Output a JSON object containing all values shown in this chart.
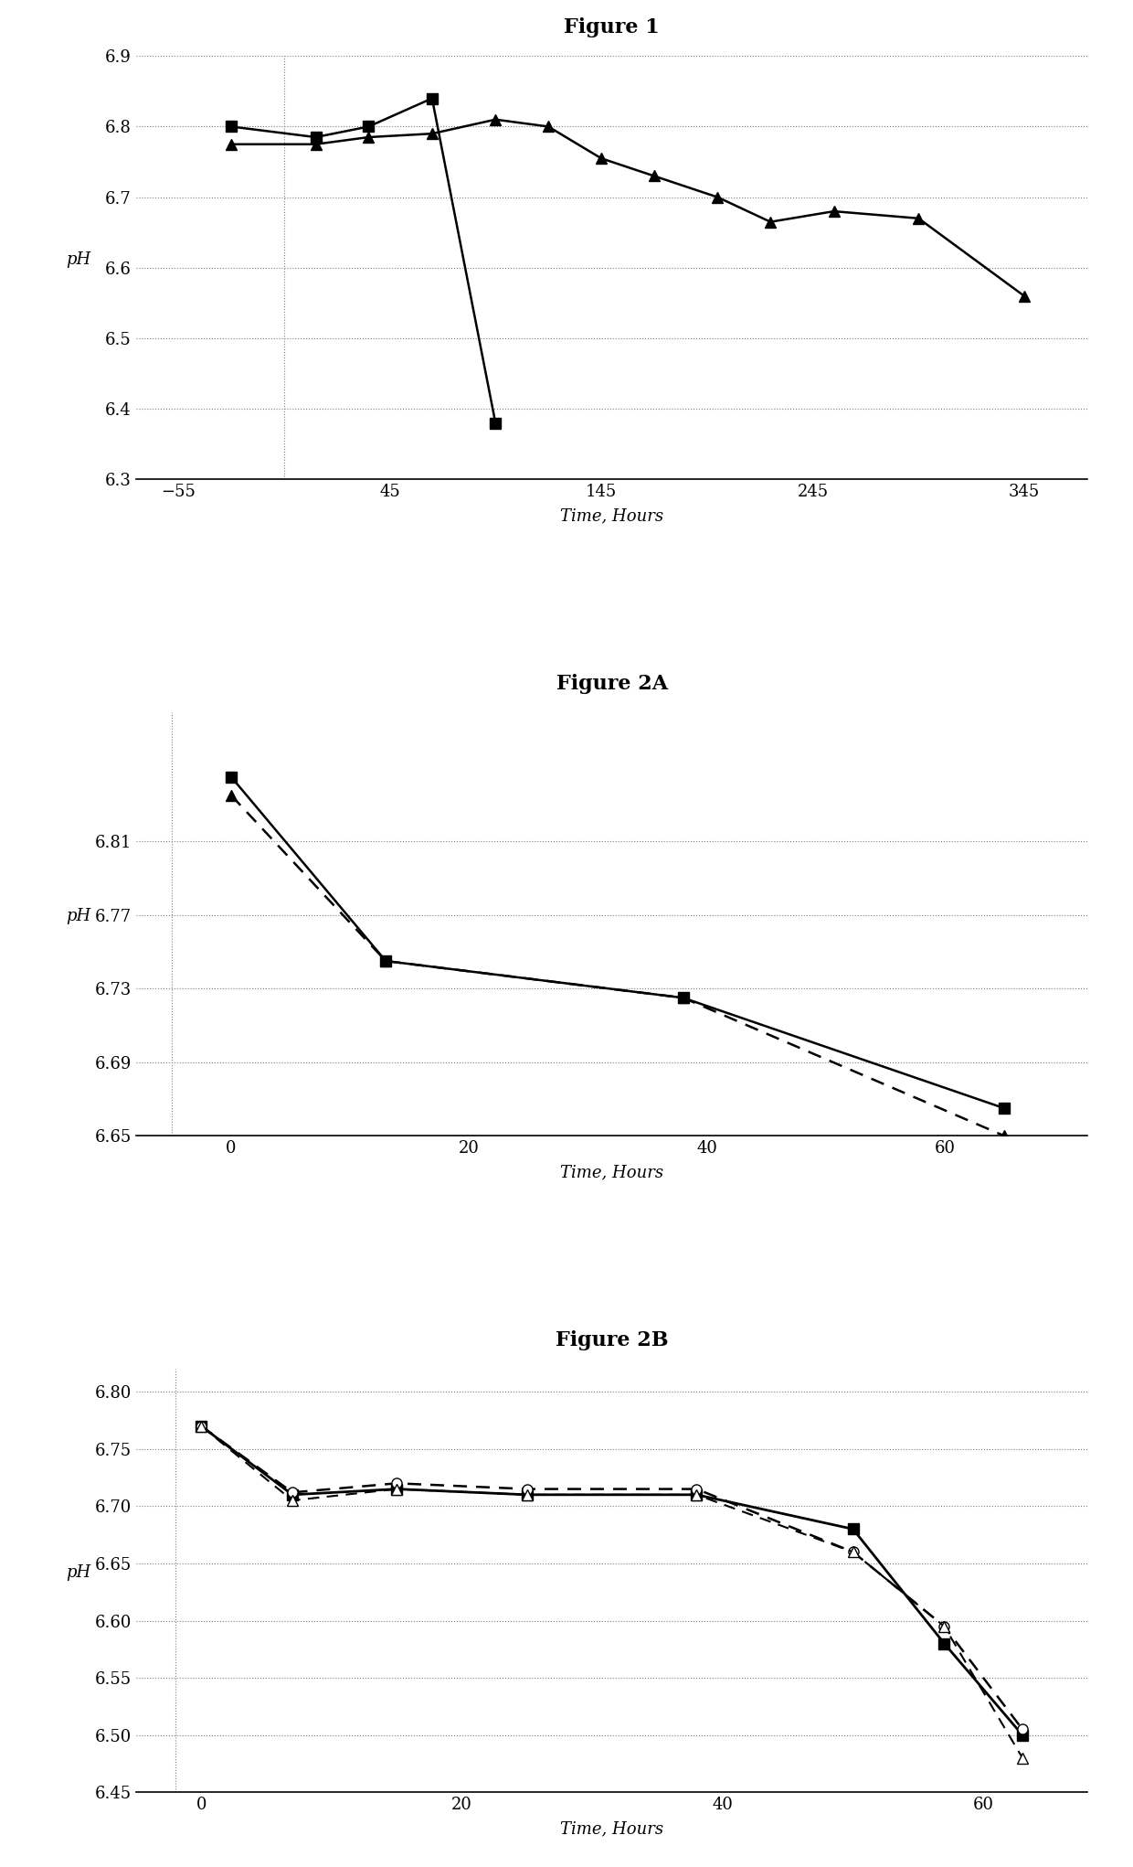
{
  "fig1": {
    "series1": {
      "x": [
        -30,
        10,
        35,
        65,
        95
      ],
      "y": [
        6.8,
        6.785,
        6.8,
        6.84,
        6.38
      ],
      "marker": "s",
      "linestyle": "-",
      "color": "#000000",
      "markersize": 9
    },
    "series2": {
      "x": [
        -30,
        10,
        35,
        65,
        95,
        120,
        145,
        170,
        200,
        225,
        255,
        295,
        345
      ],
      "y": [
        6.775,
        6.775,
        6.785,
        6.79,
        6.81,
        6.8,
        6.755,
        6.73,
        6.7,
        6.665,
        6.68,
        6.67,
        6.56
      ],
      "marker": "^",
      "linestyle": "-",
      "color": "#000000",
      "markersize": 9
    },
    "xlabel": "Time, Hours",
    "ylabel": "pH",
    "title": "Figure 1",
    "xlim": [
      -75,
      375
    ],
    "ylim": [
      6.3,
      6.9
    ],
    "yticks": [
      6.3,
      6.4,
      6.5,
      6.6,
      6.7,
      6.8,
      6.9
    ],
    "xticks": [
      -55,
      45,
      145,
      245,
      345
    ],
    "vline_x": -5
  },
  "fig2a": {
    "series1": {
      "x": [
        0,
        13,
        38,
        65
      ],
      "y": [
        6.845,
        6.745,
        6.725,
        6.665
      ],
      "marker": "s",
      "linestyle": "-",
      "color": "#000000",
      "markersize": 9
    },
    "series2": {
      "x": [
        0,
        13,
        38,
        65
      ],
      "y": [
        6.835,
        6.745,
        6.725,
        6.65
      ],
      "marker": "^",
      "linestyle": "--",
      "color": "#000000",
      "markersize": 9
    },
    "xlabel": "Time, Hours",
    "ylabel": "pH",
    "title": "Figure 2A",
    "xlim": [
      -8,
      72
    ],
    "ylim": [
      6.65,
      6.88
    ],
    "yticks": [
      6.65,
      6.69,
      6.73,
      6.77,
      6.81
    ],
    "xticks": [
      0,
      20,
      40,
      60
    ],
    "vline_x": -5
  },
  "fig2b": {
    "series1": {
      "x": [
        0,
        7,
        15,
        25,
        38,
        50,
        57,
        63
      ],
      "y": [
        6.77,
        6.71,
        6.715,
        6.71,
        6.71,
        6.68,
        6.58,
        6.5
      ],
      "marker": "s",
      "linestyle": "-",
      "color": "#000000",
      "markersize": 8
    },
    "series2": {
      "x": [
        0,
        7,
        15,
        25,
        38,
        50,
        57,
        63
      ],
      "y": [
        6.77,
        6.712,
        6.72,
        6.715,
        6.715,
        6.66,
        6.595,
        6.505
      ],
      "marker": "o",
      "linestyle": "--",
      "color": "#000000",
      "markersize": 8,
      "markerfacecolor": "white"
    },
    "series3": {
      "x": [
        0,
        7,
        15,
        25,
        38,
        50,
        57,
        63
      ],
      "y": [
        6.77,
        6.705,
        6.715,
        6.71,
        6.71,
        6.66,
        6.595,
        6.48
      ],
      "marker": "^",
      "linestyle": "--",
      "color": "#000000",
      "markersize": 8,
      "markerfacecolor": "white"
    },
    "xlabel": "Time, Hours",
    "ylabel": "pH",
    "title": "Figure 2B",
    "xlim": [
      -5,
      68
    ],
    "ylim": [
      6.45,
      6.82
    ],
    "yticks": [
      6.45,
      6.5,
      6.55,
      6.6,
      6.65,
      6.7,
      6.75,
      6.8
    ],
    "xticks": [
      0,
      20,
      40,
      60
    ],
    "vline_x": -2
  }
}
